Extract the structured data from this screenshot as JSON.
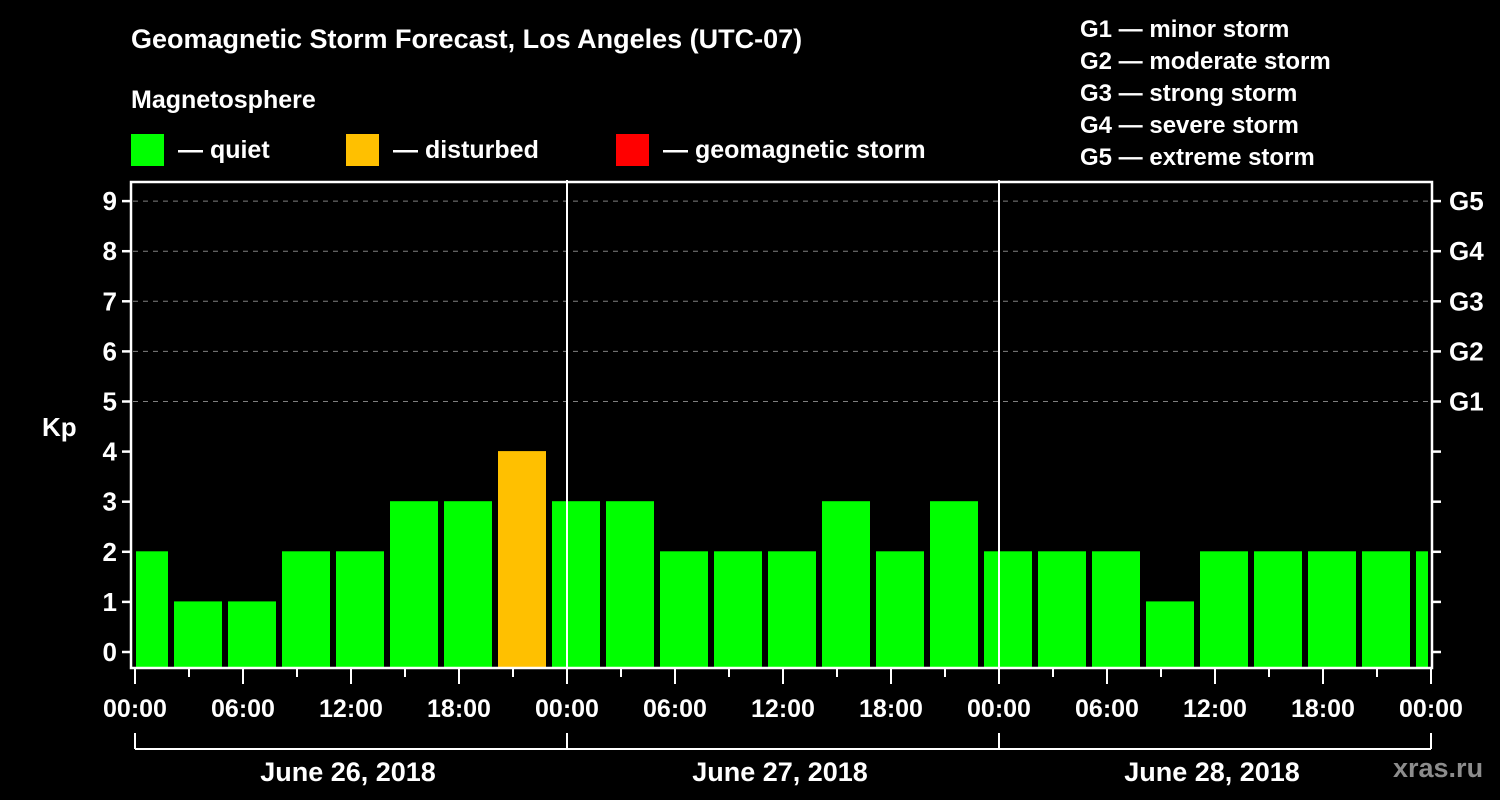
{
  "header": {
    "title": "Geomagnetic Storm Forecast, Los Angeles (UTC-07)",
    "subtitle": "Magnetosphere"
  },
  "legend": {
    "items": [
      {
        "label": "— quiet",
        "color": "#00ff00",
        "x": 131
      },
      {
        "label": "— disturbed",
        "color": "#ffc000",
        "x": 346
      },
      {
        "label": "— geomagnetic storm",
        "color": "#ff0000",
        "x": 616
      }
    ]
  },
  "storm_scale": {
    "items": [
      {
        "label": "G1 — minor storm"
      },
      {
        "label": "G2 — moderate storm"
      },
      {
        "label": "G3 — strong storm"
      },
      {
        "label": "G4 — severe storm"
      },
      {
        "label": "G5 — extreme storm"
      }
    ]
  },
  "axis": {
    "y_label": "Kp",
    "y_ticks": [
      "0",
      "1",
      "2",
      "3",
      "4",
      "5",
      "6",
      "7",
      "8",
      "9"
    ],
    "right_ticks": [
      {
        "kp": 5,
        "label": "G1"
      },
      {
        "kp": 6,
        "label": "G2"
      },
      {
        "kp": 7,
        "label": "G3"
      },
      {
        "kp": 8,
        "label": "G4"
      },
      {
        "kp": 9,
        "label": "G5"
      }
    ],
    "x_tick_labels": [
      "00:00",
      "06:00",
      "12:00",
      "18:00",
      "00:00",
      "06:00",
      "12:00",
      "18:00",
      "00:00",
      "06:00",
      "12:00",
      "18:00",
      "00:00"
    ],
    "days": [
      "June 26, 2018",
      "June 27, 2018",
      "June 28, 2018"
    ]
  },
  "watermark": "xras.ru",
  "colors": {
    "quiet": "#00ff00",
    "disturbed": "#ffc000",
    "storm": "#ff0000",
    "grid": "#808080",
    "axis": "#ffffff",
    "watermark": "#8c8c8c"
  },
  "chart_data": {
    "type": "bar",
    "title": "Geomagnetic Storm Forecast, Los Angeles (UTC-07)",
    "subtitle": "Magnetosphere",
    "xlabel": "",
    "ylabel": "Kp",
    "ylim": [
      0,
      9
    ],
    "grid": "dashed horizontal lines at Kp 5-9",
    "legend_position": "top",
    "secondary_y_labels": {
      "5": "G1",
      "6": "G2",
      "7": "G3",
      "8": "G4",
      "9": "G5"
    },
    "x_tick_labels": [
      "00:00",
      "06:00",
      "12:00",
      "18:00",
      "00:00",
      "06:00",
      "12:00",
      "18:00",
      "00:00",
      "06:00",
      "12:00",
      "18:00",
      "00:00"
    ],
    "day_labels": [
      "June 26, 2018",
      "June 27, 2018",
      "June 28, 2018"
    ],
    "interval_hours": 3,
    "categories": [
      "Jun26 00-03",
      "Jun26 03-06",
      "Jun26 06-09",
      "Jun26 09-12",
      "Jun26 12-15",
      "Jun26 15-18",
      "Jun26 18-21",
      "Jun26 21-24",
      "Jun27 00-03",
      "Jun27 03-06",
      "Jun27 06-09",
      "Jun27 09-12",
      "Jun27 12-15",
      "Jun27 15-18",
      "Jun27 18-21",
      "Jun27 21-24",
      "Jun28 00-03",
      "Jun28 03-06",
      "Jun28 06-09",
      "Jun28 09-12",
      "Jun28 12-15",
      "Jun28 15-18",
      "Jun28 18-21",
      "Jun28 21-24",
      "Jun29 00-03"
    ],
    "values": [
      2,
      1,
      1,
      2,
      2,
      3,
      3,
      4,
      3,
      3,
      2,
      2,
      2,
      3,
      2,
      3,
      2,
      2,
      2,
      1,
      2,
      2,
      2,
      2,
      2
    ],
    "status": [
      "quiet",
      "quiet",
      "quiet",
      "quiet",
      "quiet",
      "quiet",
      "quiet",
      "disturbed",
      "quiet",
      "quiet",
      "quiet",
      "quiet",
      "quiet",
      "quiet",
      "quiet",
      "quiet",
      "quiet",
      "quiet",
      "quiet",
      "quiet",
      "quiet",
      "quiet",
      "quiet",
      "quiet",
      "quiet"
    ],
    "legend": [
      "quiet",
      "disturbed",
      "geomagnetic storm"
    ]
  }
}
